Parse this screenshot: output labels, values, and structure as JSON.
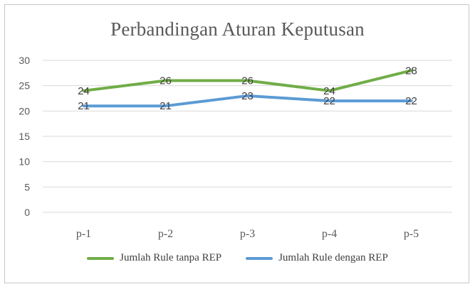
{
  "chart_data": {
    "type": "line",
    "title": "Perbandingan Aturan Keputusan",
    "categories": [
      "p-1",
      "p-2",
      "p-3",
      "p-4",
      "p-5"
    ],
    "ylim": [
      0,
      30
    ],
    "yticks": [
      0,
      5,
      10,
      15,
      20,
      25,
      30
    ],
    "grid": true,
    "legend_position": "bottom",
    "series": [
      {
        "name": "Jumlah Rule tanpa REP",
        "values": [
          24,
          26,
          26,
          24,
          28
        ],
        "color": "#70ad47"
      },
      {
        "name": "Jumlah Rule dengan REP",
        "values": [
          21,
          21,
          23,
          22,
          22
        ],
        "color": "#5b9bd5"
      }
    ]
  }
}
